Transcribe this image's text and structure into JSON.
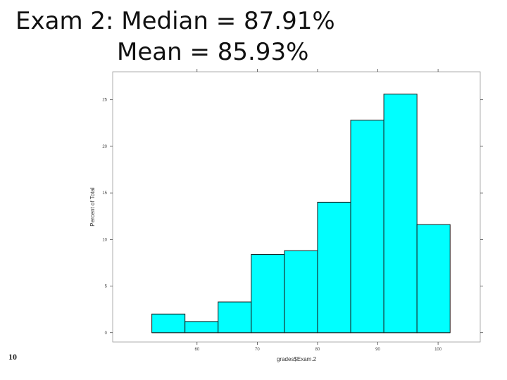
{
  "slide": {
    "title_line1": "Exam 2: Median = 87.91%",
    "title_line2": "Mean = 85.93%",
    "page_number": "10"
  },
  "colors": {
    "bar_fill": "#00ffff",
    "bar_stroke": "#1a1a1a",
    "axis": "#333333"
  },
  "chart_data": {
    "type": "bar",
    "title": "",
    "xlabel": "grades$Exam.2",
    "ylabel": "Percent of Total",
    "bin_edges": [
      52.5,
      58,
      63.5,
      69,
      74.5,
      80,
      85.5,
      91,
      96.5,
      102
    ],
    "values": [
      2.0,
      1.2,
      3.3,
      8.4,
      8.8,
      14.0,
      22.8,
      25.6,
      11.6
    ],
    "xlim": [
      46,
      107
    ],
    "ylim": [
      -1,
      28
    ],
    "xticks": [
      60,
      70,
      80,
      90,
      100
    ],
    "yticks": [
      0,
      5,
      10,
      15,
      20,
      25
    ],
    "grid": false
  }
}
